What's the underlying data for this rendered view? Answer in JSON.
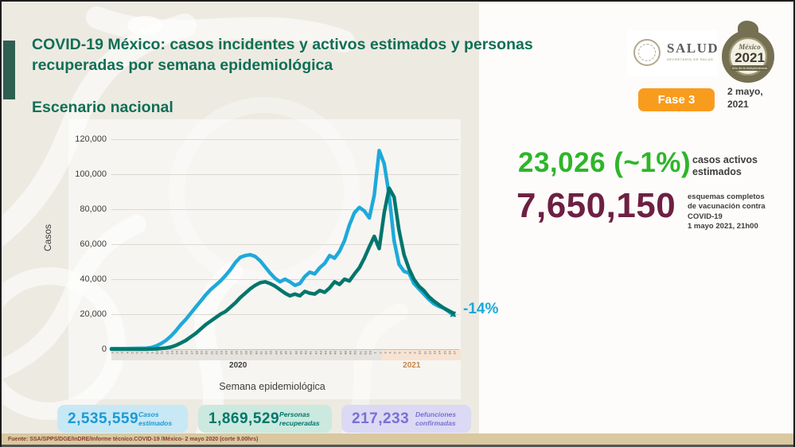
{
  "header": {
    "title": "COVID-19 México: casos incidentes y activos estimados y personas recuperadas por semana epidemiológica",
    "subtitle": "Escenario nacional",
    "phase_badge": "Fase 3",
    "date_line1": "2 mayo,",
    "date_line2": "2021"
  },
  "logos": {
    "salud_title": "SALUD",
    "salud_subtitle": "SECRETARÍA DE SALUD",
    "mexico_line1": "México",
    "mexico_line2": "2021",
    "mexico_line3": "Año de la Independencia"
  },
  "highlights": {
    "active_value": "23,026 (~1%)",
    "active_color": "#2fb52a",
    "active_label_line1": "casos activos",
    "active_label_line2": "estimados",
    "vaccine_value": "7,650,150",
    "vaccine_color": "#6d2042",
    "vaccine_label_line1": "esquemas completos",
    "vaccine_label_line2": "de vacunación contra COVID-19",
    "vaccine_label_line3": "1 mayo 2021, 21h00"
  },
  "chart_data": {
    "type": "line",
    "title": "",
    "xlabel": "Semana epidemiológica",
    "ylabel": "Casos",
    "ylim": [
      0,
      120000
    ],
    "ytick_labels": [
      "0",
      "20,000",
      "40,000",
      "60,000",
      "80,000",
      "100,000",
      "120,000"
    ],
    "grid": true,
    "legend_position": "none",
    "annotation": {
      "text": "-14%",
      "color": "#1ba8da"
    },
    "x_groups": [
      {
        "label": "2020",
        "weeks": 53,
        "label_color": "#3d3d3d"
      },
      {
        "label": "2021",
        "weeks": 17,
        "label_color": "#c8854a"
      }
    ],
    "series": [
      {
        "name": "casos estimados (incidentes)",
        "color": "#1ea9da",
        "values": [
          300,
          300,
          300,
          350,
          400,
          450,
          500,
          600,
          900,
          1800,
          3200,
          5000,
          7500,
          10500,
          14000,
          17000,
          20500,
          24000,
          27500,
          31000,
          34000,
          36500,
          39000,
          42000,
          45500,
          49500,
          52500,
          53500,
          54000,
          53000,
          50500,
          47000,
          43500,
          40500,
          38500,
          40000,
          38500,
          36500,
          37500,
          41500,
          44000,
          43000,
          46500,
          49000,
          53500,
          52000,
          56000,
          62000,
          71000,
          78000,
          81000,
          79000,
          75000,
          88000,
          113500,
          106000,
          88000,
          62000,
          48500,
          44500,
          43500,
          37500,
          34500,
          31500,
          28500,
          26000,
          24500,
          23500,
          21500,
          19500
        ]
      },
      {
        "name": "personas recuperadas",
        "color": "#00766c",
        "values": [
          0,
          0,
          0,
          0,
          0,
          0,
          0,
          0,
          100,
          200,
          400,
          700,
          1200,
          2200,
          3500,
          5000,
          7000,
          9000,
          11500,
          14000,
          16000,
          18000,
          20000,
          21500,
          24000,
          26500,
          29500,
          32000,
          34500,
          36500,
          38000,
          38500,
          37500,
          36000,
          34000,
          32000,
          30500,
          31500,
          30500,
          33000,
          32000,
          31500,
          33500,
          32500,
          35000,
          38500,
          37000,
          40000,
          39000,
          43000,
          46500,
          52000,
          58500,
          64500,
          57500,
          78000,
          92000,
          87000,
          68000,
          54000,
          46000,
          40000,
          36000,
          33500,
          30000,
          27500,
          25500,
          23500,
          22000,
          20500
        ]
      }
    ]
  },
  "summary_boxes": [
    {
      "value": "2,535,559",
      "label_line1": "Casos",
      "label_line2": "estimados",
      "bg": "#c7e8f4",
      "color": "#1b9ad6"
    },
    {
      "value": "1,869,529",
      "label_line1": "Personas",
      "label_line2": "recuperadas",
      "bg": "#cbe9df",
      "color": "#00766c"
    },
    {
      "value": "217,233",
      "label_line1": "Defunciones",
      "label_line2": "confirmadas",
      "bg": "#dbd9f4",
      "color": "#7a70d4"
    }
  ],
  "footer": {
    "source": "Fuente: SSA/SPPS/DGE/InDRE/Informe técnico.COVID-19 /México- 2 mayo 2020 (corte 9.00hrs)"
  }
}
